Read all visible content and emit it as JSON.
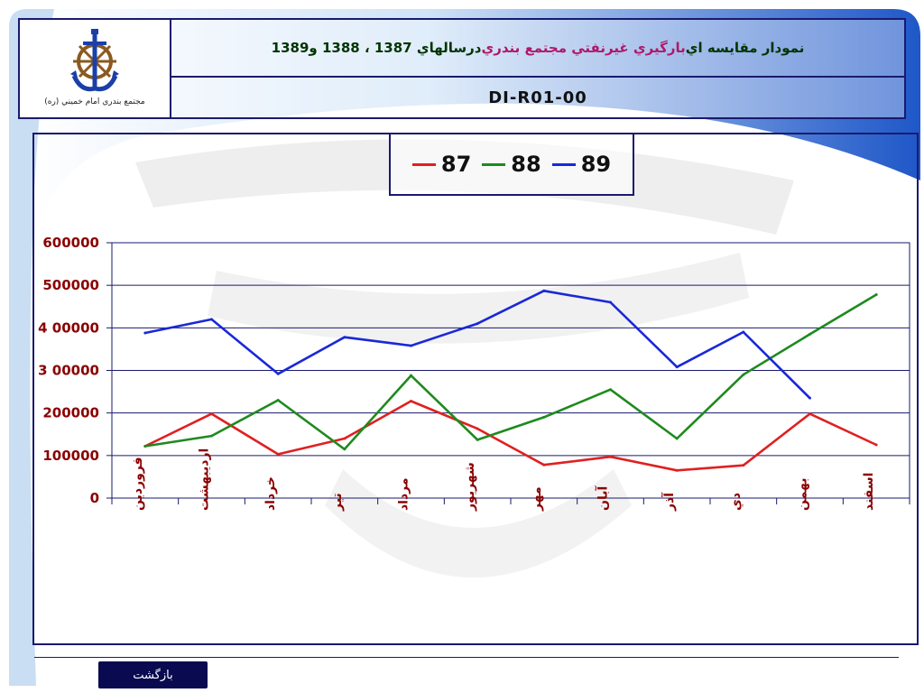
{
  "header": {
    "title_part1": "نمودار مقايسه اي ",
    "title_highlight": "بارگيري غيرنفتي مجتمع بندري",
    "title_part2": " درسالهاي 1387 ، 1388 و1389",
    "doc_code": "DI-R01-00",
    "logo_caption": "مجتمع بندري امام خميني (ره)"
  },
  "footer": {
    "back_label": "بازگشت"
  },
  "colors": {
    "s87": "#e02020",
    "s88": "#1e8a1e",
    "s89": "#1a28d8",
    "tick_text": "#8b0000"
  },
  "chart_data": {
    "type": "line",
    "title": "",
    "xlabel": "",
    "ylabel": "",
    "ylim": [
      0,
      600000
    ],
    "yticks": [
      0,
      100000,
      200000,
      300000,
      400000,
      500000,
      600000
    ],
    "ytick_labels": [
      "0",
      "100000",
      "200000",
      "3 00000",
      "4 00000",
      "500000",
      "600000"
    ],
    "grid": true,
    "legend_position": "top-center",
    "categories": [
      "فروردين",
      "ارديبهشت",
      "خرداد",
      "تير",
      "مرداد",
      "شهريور",
      "مهر",
      "آبان",
      "آذر",
      "دي",
      "بهمن",
      "اسفند"
    ],
    "series": [
      {
        "name": "87",
        "color": "#e02020",
        "values": [
          122000,
          198000,
          103000,
          140000,
          228000,
          163000,
          78000,
          97000,
          65000,
          77000,
          198000,
          125000
        ]
      },
      {
        "name": "88",
        "color": "#1e8a1e",
        "values": [
          122000,
          146000,
          230000,
          115000,
          288000,
          137000,
          190000,
          255000,
          140000,
          290000,
          385000,
          478000
        ]
      },
      {
        "name": "89",
        "color": "#1a28d8",
        "values": [
          388000,
          420000,
          292000,
          378000,
          358000,
          410000,
          487000,
          460000,
          308000,
          390000,
          235000,
          null
        ]
      }
    ]
  }
}
